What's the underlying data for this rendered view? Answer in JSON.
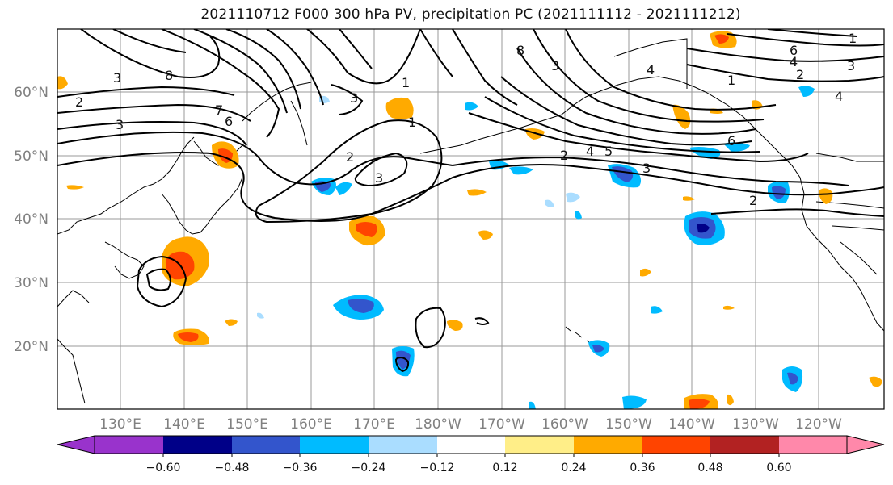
{
  "title": "2021110712 F000 300 hPa PV, precipitation PC (2021111112 - 2021111212)",
  "lat_labels": [
    "60°N",
    "50°N",
    "40°N",
    "30°N",
    "20°N"
  ],
  "lon_labels": [
    "130°E",
    "140°E",
    "150°E",
    "160°E",
    "170°E",
    "180°W",
    "170°W",
    "160°W",
    "150°W",
    "140°W",
    "130°W",
    "120°W"
  ],
  "colorbar": {
    "colors": [
      "#9933cc",
      "#000088",
      "#3355cc",
      "#00bbff",
      "#aaddff",
      "#ffffff",
      "#ffee88",
      "#ffaa00",
      "#ff4400",
      "#b22222",
      "#ff88aa"
    ],
    "tick_labels": [
      "−0.60",
      "−0.48",
      "−0.36",
      "−0.24",
      "−0.12",
      "0.12",
      "0.24",
      "0.36",
      "0.48",
      "0.60"
    ]
  },
  "contour_labels": [
    "8",
    "3",
    "2",
    "7",
    "6",
    "3",
    "1",
    "3",
    "2",
    "3",
    "1",
    "8",
    "3",
    "2",
    "4",
    "5",
    "3",
    "6",
    "4",
    "1",
    "2",
    "6",
    "4",
    "3",
    "1",
    "4",
    "2"
  ]
}
